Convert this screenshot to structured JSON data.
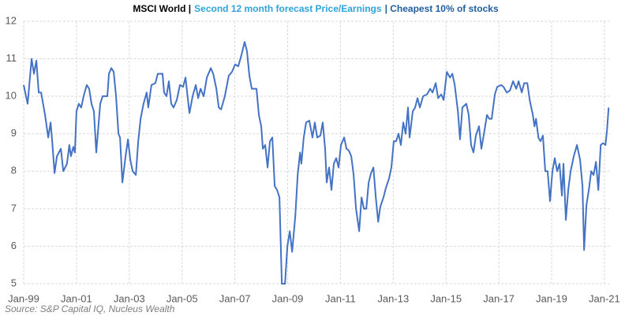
{
  "chart_data": {
    "type": "line",
    "title_parts": [
      {
        "text": "MSCI World |",
        "color": "#000000"
      },
      {
        "text": "Second 12 month forecast Price/Earnings",
        "color": "#2fa4d8"
      },
      {
        "text": "| Cheapest 10% of stocks",
        "color": "#1f5fa0"
      }
    ],
    "source": "Source: S&P Capital IQ, Nucleus Wealth",
    "color": "#4472c4",
    "grid": true,
    "xlim": [
      1999,
      2021.2
    ],
    "xticks": [
      {
        "value": 1999,
        "label": "Jan-99"
      },
      {
        "value": 2001,
        "label": "Jan-01"
      },
      {
        "value": 2003,
        "label": "Jan-03"
      },
      {
        "value": 2005,
        "label": "Jan-05"
      },
      {
        "value": 2007,
        "label": "Jan-07"
      },
      {
        "value": 2009,
        "label": "Jan-09"
      },
      {
        "value": 2011,
        "label": "Jan-11"
      },
      {
        "value": 2013,
        "label": "Jan-13"
      },
      {
        "value": 2015,
        "label": "Jan-15"
      },
      {
        "value": 2017,
        "label": "Jan-17"
      },
      {
        "value": 2019,
        "label": "Jan-19"
      },
      {
        "value": 2021,
        "label": "Jan-21"
      }
    ],
    "ylim": [
      5,
      12
    ],
    "yticks": [
      5,
      6,
      7,
      8,
      9,
      10,
      11,
      12
    ],
    "x": [
      1999,
      1999.15,
      1999.3,
      1999.39,
      1999.48,
      1999.57,
      1999.66,
      1999.81,
      1999.93,
      2000.02,
      2000.08,
      2000.17,
      2000.26,
      2000.41,
      2000.5,
      2000.64,
      2000.73,
      2000.79,
      2000.88,
      2000.94,
      2001,
      2001.09,
      2001.18,
      2001.27,
      2001.39,
      2001.48,
      2001.57,
      2001.66,
      2001.75,
      2001.9,
      2001.99,
      2002.17,
      2002.23,
      2002.32,
      2002.41,
      2002.5,
      2002.59,
      2002.65,
      2002.74,
      2002.86,
      2002.95,
      2003.04,
      2003.13,
      2003.25,
      2003.34,
      2003.43,
      2003.54,
      2003.66,
      2003.72,
      2003.84,
      2003.99,
      2004.08,
      2004.26,
      2004.32,
      2004.41,
      2004.5,
      2004.59,
      2004.68,
      2004.8,
      2004.92,
      2005.04,
      2005.13,
      2005.28,
      2005.4,
      2005.52,
      2005.61,
      2005.7,
      2005.82,
      2005.94,
      2006.09,
      2006.18,
      2006.3,
      2006.39,
      2006.48,
      2006.62,
      2006.77,
      2006.89,
      2007.01,
      2007.13,
      2007.25,
      2007.37,
      2007.46,
      2007.55,
      2007.64,
      2007.82,
      2007.91,
      2008,
      2008.06,
      2008.15,
      2008.24,
      2008.33,
      2008.42,
      2008.51,
      2008.6,
      2008.69,
      2008.78,
      2008.9,
      2008.99,
      2009.08,
      2009.17,
      2009.29,
      2009.38,
      2009.47,
      2009.52,
      2009.61,
      2009.7,
      2009.82,
      2009.94,
      2010.03,
      2010.12,
      2010.24,
      2010.33,
      2010.42,
      2010.48,
      2010.57,
      2010.66,
      2010.75,
      2010.84,
      2010.93,
      2011.02,
      2011.14,
      2011.23,
      2011.32,
      2011.41,
      2011.5,
      2011.59,
      2011.71,
      2011.8,
      2011.89,
      2011.98,
      2012.07,
      2012.16,
      2012.25,
      2012.34,
      2012.43,
      2012.51,
      2012.63,
      2012.72,
      2012.84,
      2012.93,
      2013.02,
      2013.11,
      2013.2,
      2013.29,
      2013.38,
      2013.47,
      2013.56,
      2013.62,
      2013.74,
      2013.83,
      2013.92,
      2014.01,
      2014.13,
      2014.28,
      2014.4,
      2014.49,
      2014.61,
      2014.7,
      2014.82,
      2014.91,
      2015.03,
      2015.15,
      2015.24,
      2015.33,
      2015.45,
      2015.53,
      2015.62,
      2015.77,
      2015.86,
      2015.95,
      2016.04,
      2016.13,
      2016.25,
      2016.34,
      2016.46,
      2016.55,
      2016.64,
      2016.73,
      2016.85,
      2016.94,
      2017.09,
      2017.18,
      2017.3,
      2017.42,
      2017.54,
      2017.66,
      2017.75,
      2017.87,
      2017.96,
      2018.08,
      2018.17,
      2018.29,
      2018.35,
      2018.41,
      2018.5,
      2018.58,
      2018.67,
      2018.76,
      2018.85,
      2018.94,
      2019.03,
      2019.12,
      2019.21,
      2019.3,
      2019.39,
      2019.45,
      2019.54,
      2019.63,
      2019.72,
      2019.84,
      2019.96,
      2020.08,
      2020.17,
      2020.23,
      2020.32,
      2020.41,
      2020.5,
      2020.59,
      2020.68,
      2020.77,
      2020.86,
      2020.95,
      2021.04,
      2021.1,
      2021.16
    ],
    "values": [
      10.3,
      9.8,
      11.0,
      10.6,
      10.95,
      10.1,
      10.1,
      9.5,
      8.9,
      9.3,
      8.8,
      7.95,
      8.4,
      8.6,
      8.0,
      8.2,
      8.7,
      8.4,
      8.65,
      8.5,
      9.6,
      9.8,
      9.7,
      10.0,
      10.3,
      10.2,
      9.8,
      9.6,
      8.5,
      9.8,
      10.0,
      10.0,
      10.6,
      10.75,
      10.65,
      10.0,
      9.0,
      8.9,
      7.7,
      8.4,
      8.85,
      8.3,
      8.0,
      7.9,
      8.8,
      9.4,
      9.8,
      10.1,
      9.7,
      10.3,
      10.35,
      10.6,
      10.6,
      10.1,
      10.0,
      10.4,
      9.8,
      9.7,
      9.9,
      10.3,
      10.25,
      10.5,
      9.55,
      10.0,
      10.3,
      9.95,
      10.2,
      10.0,
      10.5,
      10.75,
      10.6,
      10.2,
      9.7,
      9.65,
      10.0,
      10.55,
      10.65,
      10.85,
      10.8,
      11.1,
      11.45,
      11.2,
      10.55,
      10.2,
      10.2,
      9.5,
      9.2,
      8.6,
      8.7,
      8.1,
      8.8,
      8.9,
      7.6,
      7.5,
      7.3,
      5.0,
      5.0,
      6.0,
      6.4,
      5.85,
      6.8,
      7.9,
      8.5,
      8.2,
      8.9,
      9.3,
      9.35,
      8.9,
      9.3,
      8.9,
      8.95,
      9.3,
      8.6,
      7.7,
      8.1,
      7.5,
      8.2,
      8.35,
      8.1,
      8.7,
      8.9,
      8.6,
      8.55,
      8.4,
      7.9,
      7.0,
      6.4,
      7.3,
      7.0,
      7.0,
      7.7,
      7.95,
      8.1,
      7.3,
      6.65,
      7.05,
      7.3,
      7.55,
      7.8,
      8.1,
      8.8,
      8.8,
      9.0,
      8.7,
      9.3,
      9.0,
      9.7,
      8.9,
      9.6,
      9.7,
      9.95,
      9.7,
      10.0,
      10.05,
      10.2,
      10.1,
      10.35,
      9.95,
      10.05,
      9.9,
      10.65,
      10.5,
      10.6,
      10.3,
      9.6,
      8.85,
      9.7,
      9.8,
      9.5,
      8.7,
      8.5,
      8.95,
      9.2,
      8.6,
      9.1,
      9.5,
      9.4,
      9.4,
      10.05,
      10.25,
      10.3,
      10.25,
      10.1,
      10.15,
      10.4,
      10.2,
      10.4,
      10.1,
      10.35,
      10.35,
      9.9,
      9.5,
      9.2,
      9.4,
      8.9,
      8.8,
      8.95,
      8.0,
      8.0,
      7.2,
      8.0,
      8.35,
      8.0,
      8.2,
      7.35,
      8.2,
      6.7,
      7.5,
      8.0,
      8.4,
      8.7,
      8.3,
      7.6,
      5.9,
      7.1,
      7.5,
      8.0,
      7.9,
      8.25,
      7.5,
      8.7,
      8.75,
      8.7,
      9.1,
      9.7
    ]
  }
}
